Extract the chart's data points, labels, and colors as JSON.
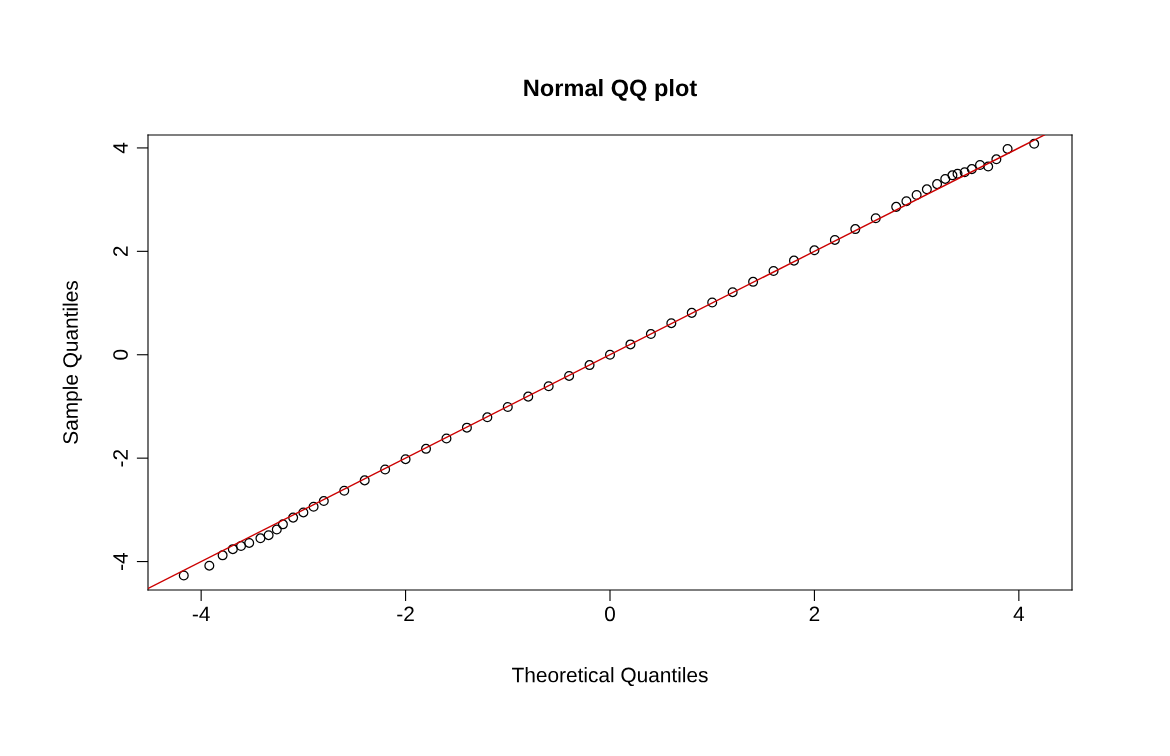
{
  "chart_data": {
    "type": "scatter",
    "title": "Normal QQ plot",
    "xlabel": "Theoretical Quantiles",
    "ylabel": "Sample Quantiles",
    "xlim": [
      -4.52,
      4.52
    ],
    "ylim": [
      -4.55,
      4.25
    ],
    "xticks": [
      -4,
      -2,
      0,
      2,
      4
    ],
    "yticks": [
      -4,
      -2,
      0,
      2,
      4
    ],
    "grid": false,
    "legend": false,
    "marker": "circle",
    "series": [
      {
        "color": "#000000",
        "x": [
          -4.17,
          -3.92,
          -3.79,
          -3.69,
          -3.61,
          -3.53,
          -3.42,
          -3.34,
          -3.26,
          -3.2,
          -3.1,
          -3.0,
          -2.9,
          -2.8,
          -2.6,
          -2.4,
          -2.2,
          -2.0,
          -1.8,
          -1.6,
          -1.4,
          -1.2,
          -1.0,
          -0.8,
          -0.6,
          -0.4,
          -0.2,
          0.0,
          0.2,
          0.4,
          0.6,
          0.8,
          1.0,
          1.2,
          1.4,
          1.6,
          1.8,
          2.0,
          2.2,
          2.4,
          2.6,
          2.8,
          2.9,
          3.0,
          3.1,
          3.2,
          3.28,
          3.35,
          3.4,
          3.47,
          3.54,
          3.62,
          3.7,
          3.78,
          3.89,
          4.15
        ],
        "values": [
          -4.27,
          -4.08,
          -3.88,
          -3.76,
          -3.7,
          -3.64,
          -3.55,
          -3.49,
          -3.38,
          -3.28,
          -3.15,
          -3.05,
          -2.94,
          -2.83,
          -2.63,
          -2.43,
          -2.22,
          -2.02,
          -1.82,
          -1.62,
          -1.41,
          -1.21,
          -1.01,
          -0.81,
          -0.61,
          -0.41,
          -0.2,
          0.0,
          0.2,
          0.4,
          0.61,
          0.81,
          1.01,
          1.21,
          1.41,
          1.62,
          1.82,
          2.02,
          2.22,
          2.43,
          2.64,
          2.86,
          2.97,
          3.09,
          3.2,
          3.3,
          3.4,
          3.47,
          3.5,
          3.53,
          3.59,
          3.67,
          3.64,
          3.78,
          3.98,
          4.08
        ]
      },
      {
        "type": "line",
        "color": "#cc0000",
        "marker": "none",
        "x": [
          -4.52,
          4.25
        ],
        "values": [
          -4.52,
          4.25
        ]
      }
    ]
  }
}
